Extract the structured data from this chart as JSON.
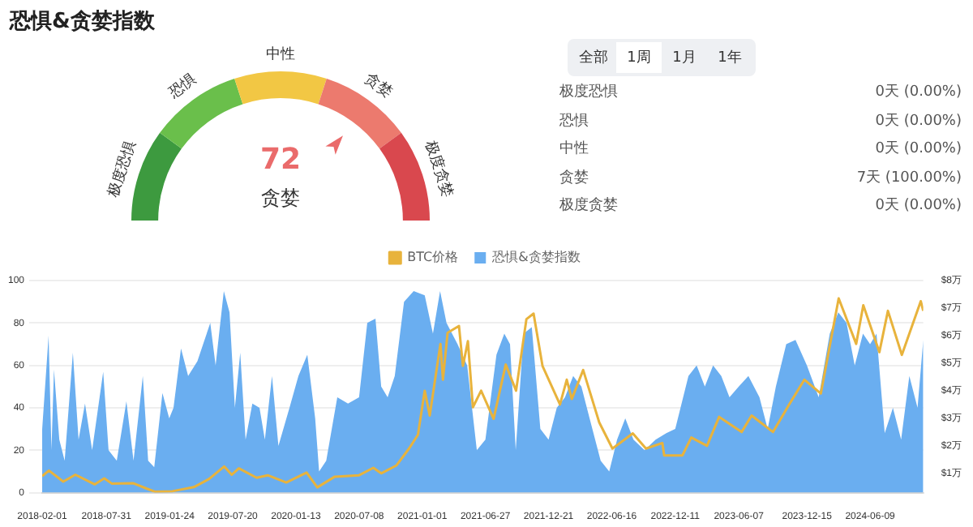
{
  "chart_data": [
    {
      "type": "donut",
      "title": "恐惧&贪婪指数",
      "categories": [
        "极度恐惧",
        "恐惧",
        "中性",
        "贪婪",
        "极度贪婪"
      ],
      "values": [
        20,
        20,
        20,
        20,
        20
      ],
      "colors": [
        "#3d9a3f",
        "#6abf4b",
        "#f2c744",
        "#ec7a6e",
        "#d9484e"
      ],
      "annotations": [
        "72",
        "贪婪"
      ]
    },
    {
      "type": "other",
      "annotations": [
        "全部",
        "1周",
        "1月",
        "1年",
        "极度恐惧",
        "0天 (0.00%)",
        "恐惧",
        "0天 (0.00%)",
        "中性",
        "0天 (0.00%)",
        "贪婪",
        "7天 (100.00%)",
        "极度贪婪",
        "0天 (0.00%)"
      ]
    },
    {
      "type": "line",
      "xlim": [
        "2018-02-01",
        "2024-11-05"
      ],
      "xticks": [
        "2018-02-01",
        "2018-07-31",
        "2019-01-24",
        "2019-07-20",
        "2020-01-13",
        "2020-07-08",
        "2021-01-01",
        "2021-06-27",
        "2021-12-21",
        "2022-06-16",
        "2022-12-11",
        "2023-06-07",
        "2023-12-15",
        "2024-06-09"
      ],
      "ylim": [
        0,
        100
      ],
      "yticks": [
        0,
        20,
        40,
        60,
        80,
        100
      ],
      "y2lim": [
        0.3,
        8
      ],
      "y2ticks": [
        {
          "value": 1,
          "label": "$1万"
        },
        {
          "value": 2,
          "label": "$2万"
        },
        {
          "value": 3,
          "label": "$3万"
        },
        {
          "value": 4,
          "label": "$4万"
        },
        {
          "value": 5,
          "label": "$5万"
        },
        {
          "value": 6,
          "label": "$6万"
        },
        {
          "value": 7,
          "label": "$7万"
        },
        {
          "value": 8,
          "label": "$8万"
        }
      ],
      "grid": "y",
      "legend": "top",
      "marker": "none",
      "series": [
        {
          "name": "BTC价格",
          "type": "line",
          "axis": "y2",
          "color": "#e8b33c",
          "x": [
            "2018-02-01",
            "2018-02-20",
            "2018-04-01",
            "2018-05-05",
            "2018-06-28",
            "2018-07-25",
            "2018-08-15",
            "2018-10-15",
            "2018-11-20",
            "2018-12-15",
            "2019-02-01",
            "2019-04-02",
            "2019-05-15",
            "2019-06-26",
            "2019-07-17",
            "2019-08-06",
            "2019-09-25",
            "2019-10-26",
            "2019-12-17",
            "2020-02-12",
            "2020-03-13",
            "2020-05-01",
            "2020-07-08",
            "2020-08-17",
            "2020-09-08",
            "2020-10-21",
            "2020-11-25",
            "2020-12-20",
            "2021-01-08",
            "2021-01-22",
            "2021-02-21",
            "2021-02-28",
            "2021-03-13",
            "2021-04-14",
            "2021-04-25",
            "2021-05-09",
            "2021-05-23",
            "2021-06-15",
            "2021-07-20",
            "2021-08-23",
            "2021-09-21",
            "2021-10-20",
            "2021-11-09",
            "2021-12-04",
            "2022-01-22",
            "2022-02-10",
            "2022-02-24",
            "2022-03-28",
            "2022-05-12",
            "2022-06-18",
            "2022-08-14",
            "2022-09-20",
            "2022-11-05",
            "2022-11-10",
            "2022-12-31",
            "2023-01-25",
            "2023-03-10",
            "2023-04-13",
            "2023-06-15",
            "2023-07-13",
            "2023-09-11",
            "2023-10-24",
            "2023-12-08",
            "2024-01-23",
            "2024-03-13",
            "2024-05-01",
            "2024-05-21",
            "2024-07-05",
            "2024-07-29",
            "2024-09-06",
            "2024-10-29",
            "2024-11-05"
          ],
          "values": [
            0.9,
            1.1,
            0.7,
            0.95,
            0.6,
            0.82,
            0.63,
            0.64,
            0.45,
            0.33,
            0.35,
            0.5,
            0.8,
            1.25,
            0.95,
            1.18,
            0.84,
            0.93,
            0.67,
            1.03,
            0.49,
            0.88,
            0.93,
            1.2,
            1.0,
            1.29,
            1.9,
            2.4,
            4.0,
            3.1,
            5.7,
            4.4,
            6.1,
            6.35,
            4.9,
            5.8,
            3.4,
            4.0,
            2.98,
            4.95,
            4.0,
            6.6,
            6.8,
            4.9,
            3.5,
            4.4,
            3.7,
            4.75,
            2.85,
            1.9,
            2.45,
            1.9,
            2.1,
            1.65,
            1.65,
            2.3,
            2.0,
            3.05,
            2.5,
            3.1,
            2.5,
            3.45,
            4.4,
            3.9,
            7.35,
            5.7,
            7.1,
            5.4,
            6.9,
            5.3,
            7.25,
            6.9
          ]
        },
        {
          "name": "恐惧&贪婪指数",
          "type": "area",
          "color": "#6aaef0",
          "x": [
            "2018-02-01",
            "2018-02-19",
            "2018-02-27",
            "2018-03-06",
            "2018-03-21",
            "2018-04-05",
            "2018-04-28",
            "2018-05-14",
            "2018-06-01",
            "2018-06-21",
            "2018-07-22",
            "2018-08-06",
            "2018-08-29",
            "2018-09-25",
            "2018-10-15",
            "2018-11-10",
            "2018-11-25",
            "2018-12-12",
            "2019-01-04",
            "2019-01-23",
            "2019-02-04",
            "2019-02-25",
            "2019-03-17",
            "2019-04-12",
            "2019-04-28",
            "2019-05-18",
            "2019-06-02",
            "2019-06-25",
            "2019-07-11",
            "2019-07-26",
            "2019-08-10",
            "2019-08-25",
            "2019-09-13",
            "2019-10-03",
            "2019-10-18",
            "2019-11-07",
            "2019-11-25",
            "2019-12-26",
            "2020-01-20",
            "2020-02-14",
            "2020-03-07",
            "2020-03-18",
            "2020-04-07",
            "2020-05-08",
            "2020-06-07",
            "2020-07-08",
            "2020-07-31",
            "2020-08-23",
            "2020-09-08",
            "2020-09-26",
            "2020-10-16",
            "2020-11-11",
            "2020-12-08",
            "2021-01-08",
            "2021-01-31",
            "2021-02-20",
            "2021-03-10",
            "2021-04-10",
            "2021-05-07",
            "2021-06-03",
            "2021-06-27",
            "2021-07-28",
            "2021-08-19",
            "2021-09-04",
            "2021-09-20",
            "2021-10-12",
            "2021-11-04",
            "2021-11-28",
            "2021-12-21",
            "2022-01-13",
            "2022-02-05",
            "2022-02-28",
            "2022-03-23",
            "2022-04-15",
            "2022-05-16",
            "2022-06-09",
            "2022-07-01",
            "2022-07-24",
            "2022-08-16",
            "2022-09-16",
            "2022-10-17",
            "2022-11-16",
            "2022-12-11",
            "2023-01-17",
            "2023-02-09",
            "2023-03-04",
            "2023-03-27",
            "2023-04-19",
            "2023-05-12",
            "2023-06-07",
            "2023-07-04",
            "2023-08-04",
            "2023-08-27",
            "2023-09-19",
            "2023-10-18",
            "2023-11-13",
            "2023-12-15",
            "2024-01-17",
            "2024-02-17",
            "2024-03-12",
            "2024-04-04",
            "2024-04-27",
            "2024-05-20",
            "2024-06-09",
            "2024-06-27",
            "2024-07-20",
            "2024-08-12",
            "2024-09-04",
            "2024-09-27",
            "2024-10-20",
            "2024-11-05"
          ],
          "values": [
            30,
            74,
            20,
            58,
            25,
            15,
            66,
            25,
            42,
            20,
            57,
            20,
            15,
            43,
            15,
            55,
            15,
            12,
            47,
            35,
            40,
            68,
            55,
            62,
            70,
            80,
            60,
            95,
            85,
            40,
            66,
            25,
            42,
            40,
            25,
            55,
            22,
            40,
            55,
            65,
            35,
            10,
            15,
            45,
            42,
            45,
            80,
            82,
            50,
            45,
            55,
            90,
            95,
            93,
            75,
            95,
            80,
            70,
            60,
            20,
            25,
            65,
            75,
            70,
            20,
            75,
            78,
            30,
            25,
            40,
            45,
            55,
            50,
            35,
            15,
            10,
            25,
            35,
            25,
            20,
            25,
            28,
            30,
            55,
            60,
            50,
            60,
            55,
            45,
            50,
            55,
            45,
            30,
            50,
            70,
            72,
            60,
            45,
            75,
            85,
            80,
            60,
            75,
            70,
            75,
            28,
            40,
            25,
            55,
            40,
            72
          ]
        }
      ]
    }
  ]
}
